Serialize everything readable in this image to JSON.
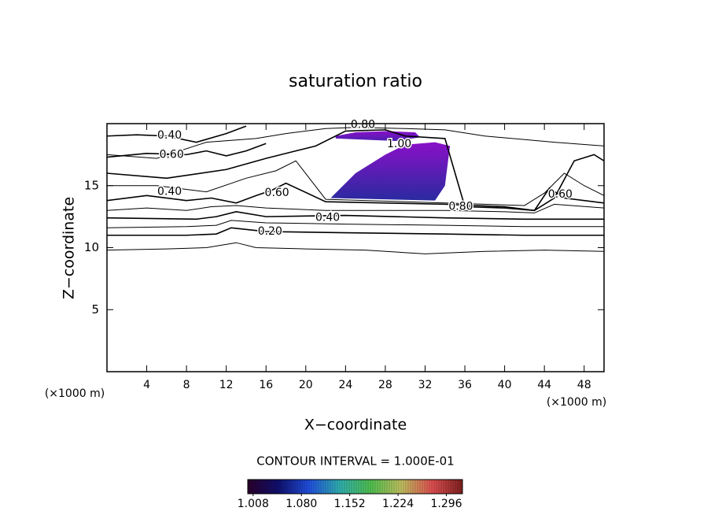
{
  "chart_data": {
    "type": "contour",
    "title": "saturation ratio",
    "x_label": "X−coordinate",
    "y_label": "Z−coordinate",
    "x_unit": "(×1000 m)",
    "y_unit": "(×1000 m)",
    "xlim": [
      0,
      50
    ],
    "ylim": [
      0,
      20
    ],
    "xticks": [
      4,
      8,
      12,
      16,
      20,
      24,
      28,
      32,
      36,
      40,
      44,
      48
    ],
    "yticks": [
      5,
      10,
      15
    ],
    "line_color": "#000000",
    "contours": [
      {
        "level": 0.1,
        "x": [
          0,
          6,
          10,
          13,
          15,
          20,
          26,
          32,
          38,
          44,
          50
        ],
        "z": [
          9.8,
          9.9,
          10.0,
          10.4,
          10.0,
          9.9,
          9.8,
          9.5,
          9.7,
          9.8,
          9.7
        ]
      },
      {
        "level": 0.2,
        "x": [
          0,
          8,
          11,
          12.5,
          16,
          24,
          34,
          42,
          50
        ],
        "z": [
          11.0,
          11.0,
          11.1,
          11.6,
          11.3,
          11.2,
          11.1,
          11.0,
          11.0
        ]
      },
      {
        "level": 0.3,
        "x": [
          0,
          8,
          11,
          12.5,
          16,
          24,
          34,
          42,
          50
        ],
        "z": [
          11.6,
          11.7,
          11.8,
          12.2,
          12.0,
          11.9,
          11.8,
          11.7,
          11.7
        ]
      },
      {
        "level": 0.4,
        "x": [
          0,
          9,
          11,
          13,
          16,
          24,
          34,
          42,
          50
        ],
        "z": [
          12.4,
          12.3,
          12.5,
          12.9,
          12.5,
          12.6,
          12.4,
          12.3,
          12.3
        ]
      },
      {
        "level": 0.5,
        "x": [
          0,
          4,
          8,
          10.5,
          13,
          16,
          22,
          30,
          34,
          40,
          43,
          45,
          50
        ],
        "z": [
          13.0,
          13.2,
          13.0,
          13.3,
          13.4,
          13.2,
          13.0,
          13.0,
          13.0,
          12.9,
          12.8,
          13.5,
          13.2
        ]
      },
      {
        "level": 0.6,
        "x": [
          0,
          4,
          8,
          10.5,
          13,
          15,
          16.5,
          18,
          22,
          34,
          40,
          43,
          44.5,
          46,
          50
        ],
        "z": [
          13.8,
          14.2,
          13.8,
          14.0,
          13.6,
          14.2,
          14.6,
          15.2,
          13.7,
          13.5,
          13.3,
          13.0,
          14.8,
          14.0,
          13.6
        ]
      },
      {
        "level": 0.7,
        "x": [
          0,
          5,
          10,
          14,
          17,
          19,
          22,
          34,
          42,
          44,
          46,
          48,
          50
        ],
        "z": [
          15.0,
          15.0,
          14.5,
          15.6,
          16.2,
          17.0,
          13.9,
          13.6,
          13.4,
          14.4,
          16.0,
          15.0,
          14.2
        ]
      },
      {
        "level": 0.8,
        "x": [
          0,
          6,
          12,
          16,
          19,
          21,
          24,
          28,
          30,
          34,
          36,
          40,
          43,
          45,
          47,
          49,
          50
        ],
        "z": [
          16.0,
          15.6,
          16.3,
          17.2,
          17.8,
          18.2,
          19.4,
          19.5,
          19.0,
          18.8,
          13.3,
          13.2,
          13.0,
          14.0,
          17.0,
          17.5,
          17.0
        ]
      },
      {
        "level": 0.9,
        "x": [
          0,
          5,
          10,
          15,
          18,
          22,
          25,
          30,
          34,
          38,
          45,
          50
        ],
        "z": [
          17.5,
          17.2,
          18.5,
          18.8,
          19.2,
          19.6,
          19.7,
          19.6,
          19.5,
          19.0,
          18.5,
          18.2
        ]
      },
      {
        "level": 0.4,
        "x": [
          0,
          3,
          6,
          9,
          12,
          14
        ],
        "z": [
          19.0,
          19.1,
          19.0,
          18.5,
          19.2,
          19.8
        ]
      },
      {
        "level": 0.6,
        "x": [
          0,
          4,
          8,
          10,
          12,
          14,
          16
        ],
        "z": [
          17.3,
          17.6,
          17.5,
          17.8,
          17.4,
          17.8,
          18.4
        ]
      }
    ],
    "regions": [
      {
        "colors": [
          "#8a10c8",
          "#2a2aa0"
        ],
        "x": [
          22.5,
          25,
          28,
          30,
          33,
          34.5,
          34,
          33,
          22.5
        ],
        "z": [
          14,
          16,
          17.5,
          18.3,
          18.5,
          18.2,
          15,
          13.8,
          14
        ]
      },
      {
        "colors": [
          "#8a10c8",
          "#4a20b0"
        ],
        "x": [
          23,
          25,
          28,
          31,
          31.5,
          29,
          23
        ],
        "z": [
          19.0,
          19.3,
          19.4,
          19.3,
          18.9,
          18.6,
          18.8
        ]
      }
    ],
    "contour_labels": [
      {
        "text": "0.80",
        "x": 25.75,
        "z": 19.9
      },
      {
        "text": "1.00",
        "x": 29.4,
        "z": 18.35
      },
      {
        "text": "0.40",
        "x": 6.3,
        "z": 19.05
      },
      {
        "text": "0.60",
        "x": 6.5,
        "z": 17.5
      },
      {
        "text": "0.40",
        "x": 6.3,
        "z": 14.5
      },
      {
        "text": "0.60",
        "x": 17.1,
        "z": 14.4
      },
      {
        "text": "0.80",
        "x": 35.6,
        "z": 13.3
      },
      {
        "text": "0.40",
        "x": 22.2,
        "z": 12.4
      },
      {
        "text": "0.20",
        "x": 16.4,
        "z": 11.3
      },
      {
        "text": "0.60",
        "x": 45.6,
        "z": 14.3
      }
    ],
    "contour_interval": "CONTOUR INTERVAL = 1.000E-01",
    "colorbar": {
      "clim": [
        1.0,
        1.32
      ],
      "colormap": [
        "#2a002a",
        "#101070",
        "#2050e0",
        "#30b0b0",
        "#50c050",
        "#c0c060",
        "#e05050",
        "#802020"
      ],
      "ticks": [
        {
          "value": 1.008,
          "label": "1.008"
        },
        {
          "value": 1.08,
          "label": "1.080"
        },
        {
          "value": 1.152,
          "label": "1.152"
        },
        {
          "value": 1.224,
          "label": "1.224"
        },
        {
          "value": 1.296,
          "label": "1.296"
        }
      ]
    }
  }
}
